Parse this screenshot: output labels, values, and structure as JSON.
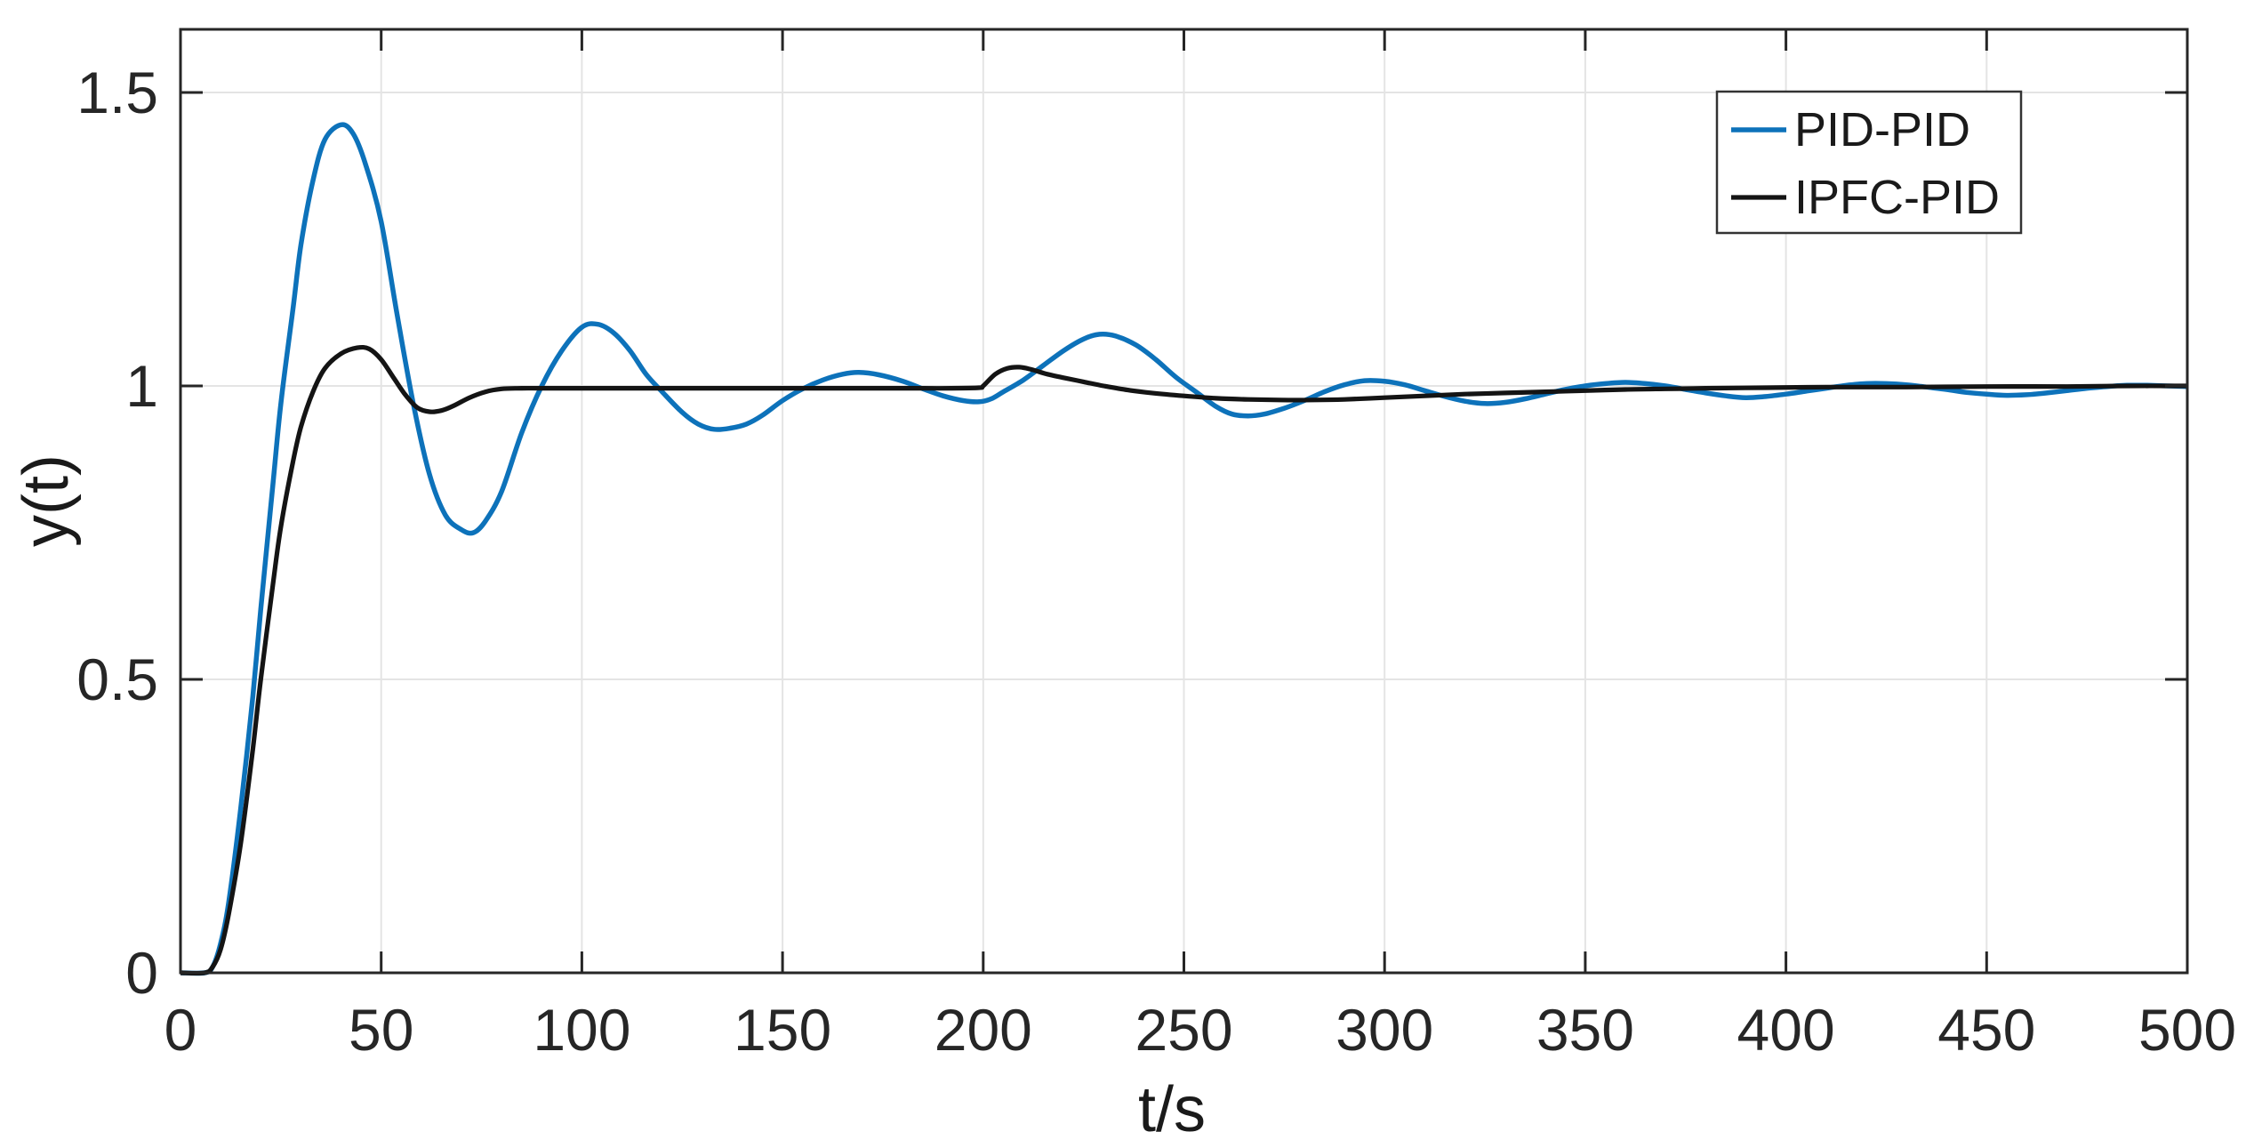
{
  "figure": {
    "background": "#ffffff",
    "axis_color": "#262626",
    "grid_color": "#e4e4e4",
    "tick_label_color": "#262626",
    "label_color": "#1a1a1a"
  },
  "chart_data": {
    "type": "line",
    "title": "",
    "xlabel": "t/s",
    "ylabel": "y(t)",
    "xlim": [
      0,
      500
    ],
    "ylim": [
      0,
      1.6
    ],
    "grid": true,
    "legend_position": "top-right",
    "x_ticks": [
      0,
      50,
      100,
      150,
      200,
      250,
      300,
      350,
      400,
      450,
      500
    ],
    "x_tick_labels": [
      "0",
      "50",
      "100",
      "150",
      "200",
      "250",
      "300",
      "350",
      "400",
      "450",
      "500"
    ],
    "y_ticks": [
      0,
      0.5,
      1,
      1.5
    ],
    "y_tick_labels": [
      "0",
      "0.5",
      "1",
      "1.5"
    ],
    "series": [
      {
        "name": "PID-PID",
        "color": "#0d72ba",
        "line_width": 5.5,
        "points": [
          [
            0,
            0
          ],
          [
            6,
            0
          ],
          [
            8,
            0.01
          ],
          [
            10,
            0.05
          ],
          [
            12,
            0.12
          ],
          [
            15,
            0.28
          ],
          [
            18,
            0.47
          ],
          [
            20,
            0.62
          ],
          [
            23,
            0.83
          ],
          [
            25,
            0.97
          ],
          [
            28,
            1.13
          ],
          [
            30,
            1.24
          ],
          [
            33,
            1.35
          ],
          [
            36,
            1.42
          ],
          [
            40,
            1.445
          ],
          [
            43,
            1.43
          ],
          [
            46,
            1.38
          ],
          [
            50,
            1.28
          ],
          [
            54,
            1.12
          ],
          [
            58,
            0.97
          ],
          [
            62,
            0.85
          ],
          [
            66,
            0.78
          ],
          [
            70,
            0.755
          ],
          [
            73,
            0.75
          ],
          [
            76,
            0.77
          ],
          [
            80,
            0.82
          ],
          [
            85,
            0.92
          ],
          [
            90,
            1.0
          ],
          [
            95,
            1.06
          ],
          [
            100,
            1.1
          ],
          [
            104,
            1.105
          ],
          [
            108,
            1.09
          ],
          [
            112,
            1.06
          ],
          [
            116,
            1.02
          ],
          [
            120,
            0.99
          ],
          [
            125,
            0.955
          ],
          [
            129,
            0.935
          ],
          [
            133,
            0.926
          ],
          [
            137,
            0.928
          ],
          [
            141,
            0.935
          ],
          [
            145,
            0.95
          ],
          [
            150,
            0.975
          ],
          [
            155,
            0.995
          ],
          [
            160,
            1.01
          ],
          [
            165,
            1.02
          ],
          [
            169,
            1.023
          ],
          [
            174,
            1.019
          ],
          [
            180,
            1.008
          ],
          [
            185,
            0.995
          ],
          [
            190,
            0.983
          ],
          [
            195,
            0.975
          ],
          [
            199,
            0.973
          ],
          [
            202,
            0.978
          ],
          [
            205,
            0.99
          ],
          [
            210,
            1.01
          ],
          [
            215,
            1.035
          ],
          [
            220,
            1.06
          ],
          [
            225,
            1.08
          ],
          [
            229,
            1.088
          ],
          [
            233,
            1.085
          ],
          [
            238,
            1.07
          ],
          [
            243,
            1.045
          ],
          [
            248,
            1.015
          ],
          [
            253,
            0.99
          ],
          [
            258,
            0.965
          ],
          [
            262,
            0.952
          ],
          [
            266,
            0.949
          ],
          [
            270,
            0.952
          ],
          [
            275,
            0.962
          ],
          [
            280,
            0.975
          ],
          [
            285,
            0.99
          ],
          [
            290,
            1.002
          ],
          [
            295,
            1.009
          ],
          [
            300,
            1.008
          ],
          [
            305,
            1.002
          ],
          [
            310,
            0.992
          ],
          [
            315,
            0.982
          ],
          [
            320,
            0.974
          ],
          [
            325,
            0.97
          ],
          [
            330,
            0.972
          ],
          [
            335,
            0.978
          ],
          [
            340,
            0.986
          ],
          [
            345,
            0.994
          ],
          [
            350,
            1.0
          ],
          [
            355,
            1.004
          ],
          [
            360,
            1.006
          ],
          [
            365,
            1.004
          ],
          [
            370,
            1.0
          ],
          [
            375,
            0.994
          ],
          [
            380,
            0.988
          ],
          [
            385,
            0.983
          ],
          [
            390,
            0.98
          ],
          [
            395,
            0.982
          ],
          [
            400,
            0.986
          ],
          [
            405,
            0.991
          ],
          [
            410,
            0.996
          ],
          [
            415,
            1.001
          ],
          [
            420,
            1.004
          ],
          [
            425,
            1.004
          ],
          [
            430,
            1.002
          ],
          [
            435,
            0.998
          ],
          [
            440,
            0.994
          ],
          [
            445,
            0.989
          ],
          [
            450,
            0.986
          ],
          [
            455,
            0.984
          ],
          [
            460,
            0.985
          ],
          [
            465,
            0.988
          ],
          [
            470,
            0.992
          ],
          [
            475,
            0.996
          ],
          [
            480,
            0.999
          ],
          [
            485,
            1.001
          ],
          [
            490,
            1.001
          ],
          [
            495,
            1.0
          ],
          [
            500,
            0.999
          ]
        ]
      },
      {
        "name": "IPFC-PID",
        "color": "#141414",
        "line_width": 5.2,
        "points": [
          [
            0,
            0
          ],
          [
            6,
            0
          ],
          [
            8,
            0.01
          ],
          [
            10,
            0.04
          ],
          [
            12,
            0.1
          ],
          [
            15,
            0.22
          ],
          [
            18,
            0.38
          ],
          [
            20,
            0.5
          ],
          [
            23,
            0.66
          ],
          [
            25,
            0.76
          ],
          [
            28,
            0.87
          ],
          [
            30,
            0.93
          ],
          [
            33,
            0.99
          ],
          [
            36,
            1.03
          ],
          [
            40,
            1.055
          ],
          [
            44,
            1.065
          ],
          [
            47,
            1.063
          ],
          [
            50,
            1.045
          ],
          [
            53,
            1.015
          ],
          [
            56,
            0.985
          ],
          [
            59,
            0.963
          ],
          [
            62,
            0.956
          ],
          [
            65,
            0.958
          ],
          [
            68,
            0.966
          ],
          [
            72,
            0.98
          ],
          [
            76,
            0.99
          ],
          [
            80,
            0.995
          ],
          [
            85,
            0.996
          ],
          [
            90,
            0.996
          ],
          [
            100,
            0.996
          ],
          [
            120,
            0.996
          ],
          [
            140,
            0.996
          ],
          [
            160,
            0.996
          ],
          [
            180,
            0.996
          ],
          [
            192,
            0.996
          ],
          [
            199,
            0.997
          ],
          [
            200,
            1.0
          ],
          [
            203,
            1.02
          ],
          [
            206,
            1.03
          ],
          [
            209,
            1.032
          ],
          [
            212,
            1.028
          ],
          [
            216,
            1.02
          ],
          [
            220,
            1.014
          ],
          [
            225,
            1.007
          ],
          [
            230,
            1.0
          ],
          [
            236,
            0.993
          ],
          [
            242,
            0.988
          ],
          [
            250,
            0.983
          ],
          [
            258,
            0.979
          ],
          [
            266,
            0.977
          ],
          [
            274,
            0.976
          ],
          [
            282,
            0.976
          ],
          [
            290,
            0.977
          ],
          [
            300,
            0.98
          ],
          [
            310,
            0.983
          ],
          [
            320,
            0.986
          ],
          [
            330,
            0.988
          ],
          [
            340,
            0.99
          ],
          [
            350,
            0.992
          ],
          [
            360,
            0.994
          ],
          [
            370,
            0.995
          ],
          [
            380,
            0.996
          ],
          [
            395,
            0.997
          ],
          [
            410,
            0.998
          ],
          [
            430,
            0.998
          ],
          [
            450,
            0.999
          ],
          [
            470,
            0.999
          ],
          [
            485,
            1.0
          ],
          [
            500,
            1.0
          ]
        ]
      }
    ],
    "legend_entries": [
      "PID-PID",
      "IPFC-PID"
    ]
  }
}
